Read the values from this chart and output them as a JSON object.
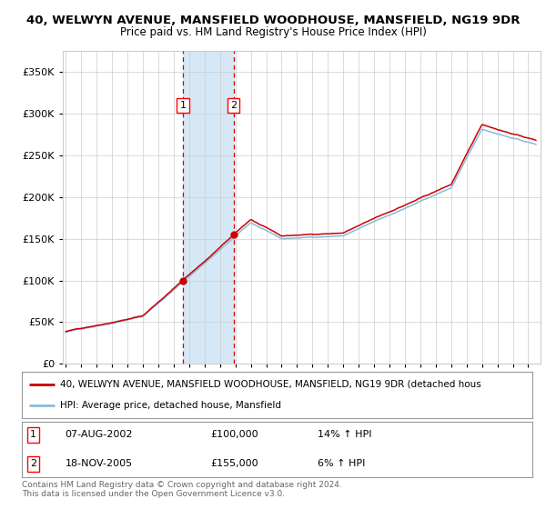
{
  "title1": "40, WELWYN AVENUE, MANSFIELD WOODHOUSE, MANSFIELD, NG19 9DR",
  "title2": "Price paid vs. HM Land Registry's House Price Index (HPI)",
  "ytick_vals": [
    0,
    50000,
    100000,
    150000,
    200000,
    250000,
    300000,
    350000
  ],
  "ylim": [
    0,
    375000
  ],
  "xlim_start": 1994.8,
  "xlim_end": 2025.8,
  "purchase1_year": 2002.59,
  "purchase1_price": 100000,
  "purchase2_year": 2005.88,
  "purchase2_price": 155000,
  "shade_color": "#d6e8f5",
  "grid_color": "#cccccc",
  "bg_color": "#ffffff",
  "line_red": "#cc0000",
  "line_blue": "#88bbdd",
  "legend_line1": "40, WELWYN AVENUE, MANSFIELD WOODHOUSE, MANSFIELD, NG19 9DR (detached hous",
  "legend_line2": "HPI: Average price, detached house, Mansfield",
  "annotation1_date": "07-AUG-2002",
  "annotation1_price": "£100,000",
  "annotation1_hpi": "14% ↑ HPI",
  "annotation2_date": "18-NOV-2005",
  "annotation2_price": "£155,000",
  "annotation2_hpi": "6% ↑ HPI",
  "footer": "Contains HM Land Registry data © Crown copyright and database right 2024.\nThis data is licensed under the Open Government Licence v3.0."
}
